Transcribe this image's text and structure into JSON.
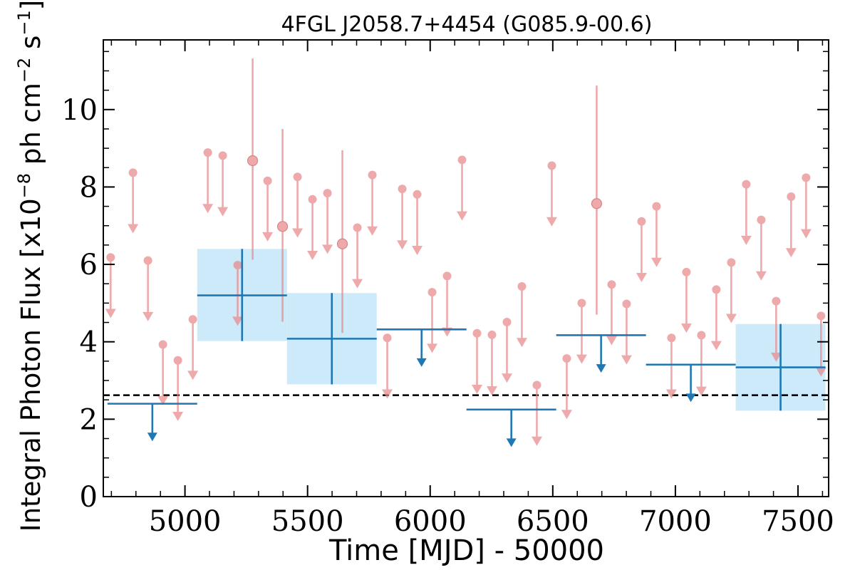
{
  "chart_data": {
    "type": "scatter",
    "title": "4FGL J2058.7+4454 (G085.9-00.6)",
    "xlabel": "Time [MJD] - 50000",
    "ylabel": {
      "pre": "Integral Photon Flux [x10",
      "exp1": "−8",
      "mid": " ph cm",
      "exp2": "−2",
      "mid2": " s",
      "exp3": "−1",
      "post": "]"
    },
    "xlim": [
      4667,
      7625
    ],
    "ylim": [
      0,
      11.8
    ],
    "xticks": [
      5000,
      5500,
      6000,
      6500,
      7000,
      7500
    ],
    "yticks": [
      0,
      2,
      4,
      6,
      8,
      10
    ],
    "reference_level": 2.62,
    "colors": {
      "fine": "#e8898b",
      "coarse": "#1f77b4",
      "band": "#cdeafb",
      "ref": "#000000"
    },
    "coarse_bins": [
      {
        "x": 4867,
        "xlo": 4684,
        "xhi": 5050,
        "y": 2.4,
        "upper_limit": true
      },
      {
        "x": 5233,
        "xlo": 5050,
        "xhi": 5416,
        "y": 5.2,
        "lo": 4.02,
        "hi": 6.4,
        "upper_limit": false
      },
      {
        "x": 5599,
        "xlo": 5416,
        "xhi": 5782,
        "y": 4.08,
        "lo": 2.9,
        "hi": 5.26,
        "upper_limit": false
      },
      {
        "x": 5965,
        "xlo": 5782,
        "xhi": 6148,
        "y": 4.32,
        "upper_limit": true
      },
      {
        "x": 6331,
        "xlo": 6148,
        "xhi": 6514,
        "y": 2.25,
        "upper_limit": true
      },
      {
        "x": 6697,
        "xlo": 6514,
        "xhi": 6880,
        "y": 4.17,
        "upper_limit": true
      },
      {
        "x": 7063,
        "xlo": 6880,
        "xhi": 7246,
        "y": 3.41,
        "upper_limit": true
      },
      {
        "x": 7429,
        "xlo": 7246,
        "xhi": 7612,
        "y": 3.34,
        "lo": 2.22,
        "hi": 4.46,
        "upper_limit": false
      }
    ],
    "fine_points": [
      {
        "x": 4697,
        "y": 6.18,
        "ul": true
      },
      {
        "x": 4788,
        "y": 8.37,
        "ul": true
      },
      {
        "x": 4849,
        "y": 6.1,
        "ul": true
      },
      {
        "x": 4910,
        "y": 3.93,
        "ul": true
      },
      {
        "x": 4971,
        "y": 3.52,
        "ul": true
      },
      {
        "x": 5032,
        "y": 4.58,
        "ul": true
      },
      {
        "x": 5093,
        "y": 8.89,
        "ul": true
      },
      {
        "x": 5154,
        "y": 8.81,
        "ul": true
      },
      {
        "x": 5215,
        "y": 5.98,
        "ul": true
      },
      {
        "x": 5276,
        "y": 8.68,
        "ul": false,
        "lo": 6.12,
        "hi": 11.32
      },
      {
        "x": 5337,
        "y": 8.16,
        "ul": true
      },
      {
        "x": 5398,
        "y": 6.98,
        "ul": false,
        "lo": 4.52,
        "hi": 9.5
      },
      {
        "x": 5459,
        "y": 8.26,
        "ul": true
      },
      {
        "x": 5520,
        "y": 7.68,
        "ul": true
      },
      {
        "x": 5581,
        "y": 7.84,
        "ul": true
      },
      {
        "x": 5642,
        "y": 6.53,
        "ul": false,
        "lo": 4.23,
        "hi": 8.95
      },
      {
        "x": 5703,
        "y": 6.95,
        "ul": true
      },
      {
        "x": 5764,
        "y": 8.31,
        "ul": true
      },
      {
        "x": 5825,
        "y": 4.1,
        "ul": true
      },
      {
        "x": 5886,
        "y": 7.95,
        "ul": true
      },
      {
        "x": 5947,
        "y": 7.81,
        "ul": true
      },
      {
        "x": 6008,
        "y": 5.28,
        "ul": true
      },
      {
        "x": 6069,
        "y": 5.7,
        "ul": true
      },
      {
        "x": 6130,
        "y": 8.7,
        "ul": true
      },
      {
        "x": 6191,
        "y": 4.22,
        "ul": true
      },
      {
        "x": 6252,
        "y": 4.18,
        "ul": true
      },
      {
        "x": 6313,
        "y": 4.51,
        "ul": true
      },
      {
        "x": 6374,
        "y": 5.43,
        "ul": true
      },
      {
        "x": 6435,
        "y": 2.88,
        "ul": true
      },
      {
        "x": 6496,
        "y": 8.55,
        "ul": true
      },
      {
        "x": 6557,
        "y": 3.57,
        "ul": true
      },
      {
        "x": 6618,
        "y": 5.0,
        "ul": true
      },
      {
        "x": 6679,
        "y": 7.57,
        "ul": false,
        "lo": 4.7,
        "hi": 10.62
      },
      {
        "x": 6740,
        "y": 5.48,
        "ul": true
      },
      {
        "x": 6801,
        "y": 4.98,
        "ul": true
      },
      {
        "x": 6862,
        "y": 7.11,
        "ul": true
      },
      {
        "x": 6923,
        "y": 7.5,
        "ul": true
      },
      {
        "x": 6984,
        "y": 4.1,
        "ul": true
      },
      {
        "x": 7045,
        "y": 5.8,
        "ul": true
      },
      {
        "x": 7106,
        "y": 4.17,
        "ul": true
      },
      {
        "x": 7167,
        "y": 5.35,
        "ul": true
      },
      {
        "x": 7228,
        "y": 6.05,
        "ul": true
      },
      {
        "x": 7289,
        "y": 8.07,
        "ul": true
      },
      {
        "x": 7350,
        "y": 7.15,
        "ul": true
      },
      {
        "x": 7411,
        "y": 5.05,
        "ul": true
      },
      {
        "x": 7472,
        "y": 7.75,
        "ul": true
      },
      {
        "x": 7533,
        "y": 8.24,
        "ul": true
      },
      {
        "x": 7594,
        "y": 4.67,
        "ul": true
      }
    ]
  }
}
